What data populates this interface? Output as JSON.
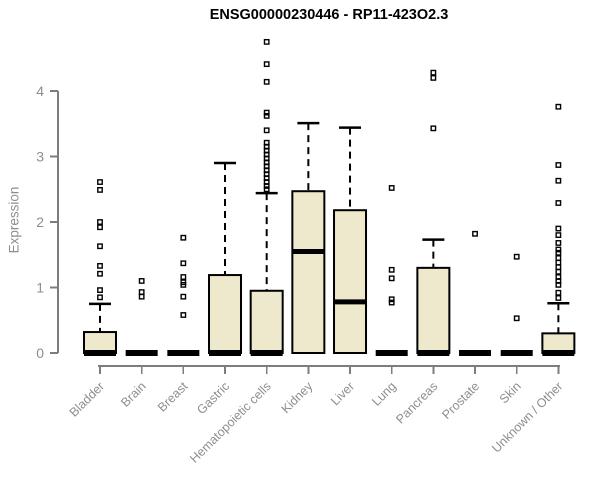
{
  "chart_data": {
    "type": "boxplot",
    "title": "ENSG00000230446 - RP11-423O2.3",
    "ylabel": "Expression",
    "xlabel": "",
    "ylim": [
      0,
      4.85
    ],
    "y_ticks": [
      0,
      1,
      2,
      3,
      4
    ],
    "grid": false,
    "legend": null,
    "categories": [
      "Bladder",
      "Brain",
      "Breast",
      "Gastric",
      "Hematopoietic cells",
      "Kidney",
      "Liver",
      "Lung",
      "Pancreas",
      "Prostate",
      "Skin",
      "Unknown / Other"
    ],
    "boxes": [
      {
        "category": "Bladder",
        "q1": 0,
        "median": 0,
        "q3": 0.32,
        "whisker_low": 0,
        "whisker_high": 0.75,
        "outliers": [
          2.61,
          2.49,
          2.0,
          1.92,
          1.63,
          1.33,
          1.21,
          0.96,
          0.85
        ]
      },
      {
        "category": "Brain",
        "q1": 0,
        "median": 0,
        "q3": 0,
        "whisker_low": 0,
        "whisker_high": 0,
        "outliers": [
          1.1,
          0.93,
          0.86
        ]
      },
      {
        "category": "Breast",
        "q1": 0,
        "median": 0,
        "q3": 0,
        "whisker_low": 0,
        "whisker_high": 0,
        "outliers": [
          1.76,
          1.37,
          1.16,
          1.08,
          1.04,
          0.86,
          0.58
        ]
      },
      {
        "category": "Gastric",
        "q1": 0,
        "median": 0,
        "q3": 1.19,
        "whisker_low": 0,
        "whisker_high": 2.9,
        "outliers": []
      },
      {
        "category": "Hematopoietic cells",
        "q1": 0,
        "median": 0,
        "q3": 0.95,
        "whisker_low": 0,
        "whisker_high": 2.44,
        "outliers": [
          4.75,
          4.41,
          4.14,
          3.67,
          3.62,
          3.4,
          3.21,
          3.15,
          3.09,
          3.03,
          2.97,
          2.91,
          2.85,
          2.79,
          2.73,
          2.67,
          2.61,
          2.55,
          2.5
        ]
      },
      {
        "category": "Kidney",
        "q1": 0,
        "median": 1.55,
        "q3": 2.47,
        "whisker_low": 0,
        "whisker_high": 3.51,
        "outliers": []
      },
      {
        "category": "Liver",
        "q1": 0,
        "median": 0.78,
        "q3": 2.18,
        "whisker_low": 0,
        "whisker_high": 3.44,
        "outliers": []
      },
      {
        "category": "Lung",
        "q1": 0,
        "median": 0,
        "q3": 0,
        "whisker_low": 0,
        "whisker_high": 0,
        "outliers": [
          2.52,
          1.27,
          1.14,
          0.82,
          0.77
        ]
      },
      {
        "category": "Pancreas",
        "q1": 0,
        "median": 0,
        "q3": 1.3,
        "whisker_low": 0,
        "whisker_high": 1.73,
        "outliers": [
          4.28,
          4.2,
          3.43
        ]
      },
      {
        "category": "Prostate",
        "q1": 0,
        "median": 0,
        "q3": 0,
        "whisker_low": 0,
        "whisker_high": 0,
        "outliers": [
          1.82
        ]
      },
      {
        "category": "Skin",
        "q1": 0,
        "median": 0,
        "q3": 0,
        "whisker_low": 0,
        "whisker_high": 0,
        "outliers": [
          1.47,
          0.53
        ]
      },
      {
        "category": "Unknown / Other",
        "q1": 0,
        "median": 0,
        "q3": 0.3,
        "whisker_low": 0,
        "whisker_high": 0.76,
        "outliers": [
          3.76,
          2.87,
          2.63,
          2.29,
          1.9,
          1.8,
          1.68,
          1.58,
          1.53,
          1.45,
          1.38,
          1.31,
          1.24,
          1.16,
          1.1,
          1.04,
          0.92,
          0.84
        ]
      }
    ],
    "colors": {
      "box_fill": "#EEE8CD",
      "box_border": "#000000",
      "median": "#000000",
      "whisker": "#000000",
      "outlier": "#000000",
      "axis": "#7d7d7d",
      "tick_label": "#8e8e8e",
      "title": "#000000",
      "background": "#ffffff"
    }
  }
}
